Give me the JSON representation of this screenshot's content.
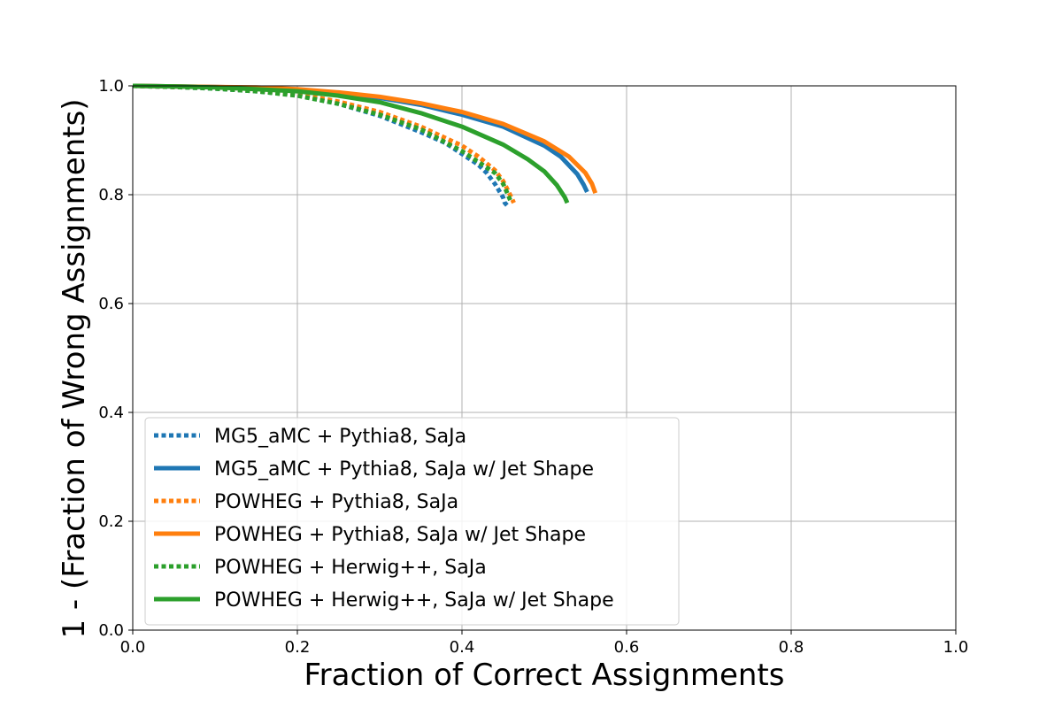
{
  "chart_data": {
    "type": "line",
    "title": "",
    "xlabel": "Fraction of Correct Assignments",
    "ylabel": "1 - (Fraction of Wrong Assignments)",
    "xlim": [
      0.0,
      1.0
    ],
    "ylim": [
      0.0,
      1.0
    ],
    "xticks": [
      "0.0",
      "0.2",
      "0.4",
      "0.6",
      "0.8",
      "1.0"
    ],
    "yticks": [
      "0.0",
      "0.2",
      "0.4",
      "0.6",
      "0.8",
      "1.0"
    ],
    "grid": true,
    "legend_position": "lower-left",
    "series": [
      {
        "name": "MG5_aMC + Pythia8, SaJa",
        "color": "#1f77b4",
        "style": "dotted",
        "x": [
          0.0,
          0.05,
          0.1,
          0.15,
          0.2,
          0.25,
          0.3,
          0.35,
          0.38,
          0.4,
          0.42,
          0.43,
          0.44,
          0.45,
          0.452,
          0.455
        ],
        "y": [
          1.0,
          0.998,
          0.995,
          0.99,
          0.983,
          0.967,
          0.945,
          0.915,
          0.895,
          0.875,
          0.855,
          0.84,
          0.82,
          0.795,
          0.785,
          0.78
        ]
      },
      {
        "name": "MG5_aMC + Pythia8, SaJa w/ Jet Shape",
        "color": "#1f77b4",
        "style": "solid",
        "x": [
          0.0,
          0.05,
          0.1,
          0.15,
          0.2,
          0.25,
          0.3,
          0.35,
          0.4,
          0.45,
          0.5,
          0.52,
          0.54,
          0.548,
          0.552
        ],
        "y": [
          1.0,
          0.999,
          0.998,
          0.996,
          0.993,
          0.987,
          0.978,
          0.965,
          0.947,
          0.925,
          0.89,
          0.87,
          0.838,
          0.818,
          0.805
        ]
      },
      {
        "name": "POWHEG + Pythia8, SaJa",
        "color": "#ff7f0e",
        "style": "dotted",
        "x": [
          0.0,
          0.05,
          0.1,
          0.15,
          0.2,
          0.25,
          0.3,
          0.35,
          0.4,
          0.42,
          0.44,
          0.45,
          0.455,
          0.46,
          0.463
        ],
        "y": [
          1.0,
          0.998,
          0.996,
          0.991,
          0.985,
          0.971,
          0.952,
          0.925,
          0.89,
          0.87,
          0.845,
          0.825,
          0.81,
          0.795,
          0.785
        ]
      },
      {
        "name": "POWHEG + Pythia8, SaJa w/ Jet Shape",
        "color": "#ff7f0e",
        "style": "solid",
        "x": [
          0.0,
          0.05,
          0.1,
          0.15,
          0.2,
          0.25,
          0.3,
          0.35,
          0.4,
          0.45,
          0.5,
          0.53,
          0.55,
          0.558,
          0.562
        ],
        "y": [
          1.0,
          0.999,
          0.998,
          0.997,
          0.994,
          0.988,
          0.98,
          0.968,
          0.952,
          0.93,
          0.898,
          0.87,
          0.84,
          0.82,
          0.803
        ]
      },
      {
        "name": "POWHEG + Herwig++, SaJa",
        "color": "#2ca02c",
        "style": "dotted",
        "x": [
          0.0,
          0.05,
          0.1,
          0.15,
          0.2,
          0.25,
          0.3,
          0.35,
          0.4,
          0.42,
          0.44,
          0.45,
          0.455,
          0.46
        ],
        "y": [
          1.0,
          0.998,
          0.995,
          0.99,
          0.982,
          0.967,
          0.947,
          0.92,
          0.88,
          0.86,
          0.84,
          0.82,
          0.803,
          0.785
        ]
      },
      {
        "name": "POWHEG + Herwig++, SaJa w/ Jet Shape",
        "color": "#2ca02c",
        "style": "solid",
        "x": [
          0.0,
          0.05,
          0.1,
          0.15,
          0.2,
          0.25,
          0.3,
          0.35,
          0.4,
          0.45,
          0.48,
          0.5,
          0.515,
          0.525,
          0.528
        ],
        "y": [
          1.0,
          0.999,
          0.997,
          0.994,
          0.99,
          0.982,
          0.97,
          0.95,
          0.925,
          0.892,
          0.865,
          0.843,
          0.818,
          0.795,
          0.785
        ]
      }
    ]
  }
}
